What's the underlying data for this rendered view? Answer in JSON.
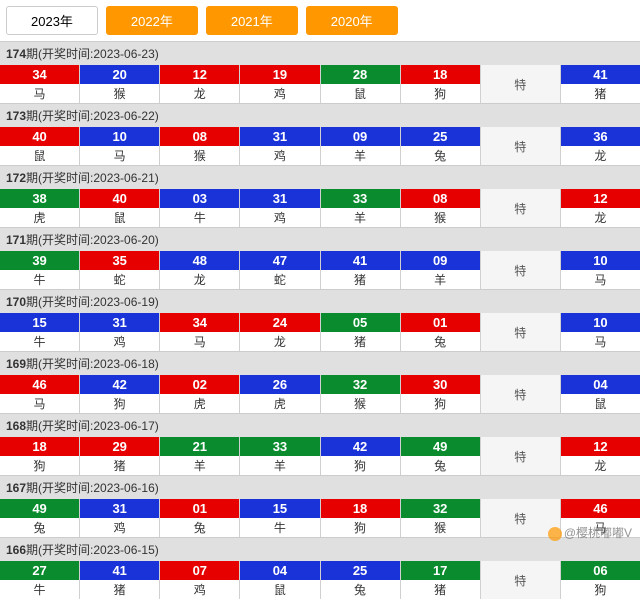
{
  "tabs": [
    {
      "label": "2023年",
      "active": true
    },
    {
      "label": "2022年",
      "active": false
    },
    {
      "label": "2021年",
      "active": false
    },
    {
      "label": "2020年",
      "active": false
    }
  ],
  "header_prefix": "期(开奖时间:",
  "header_suffix": ")",
  "special_label": "特",
  "watermark": "@樱桃嘟嘟V",
  "colors": {
    "red": "#e60000",
    "blue": "#1a33d9",
    "green": "#0a8c2e"
  },
  "rows": [
    {
      "issue": "174",
      "date": "2023-06-23",
      "cells": [
        {
          "n": "34",
          "z": "马",
          "c": "red"
        },
        {
          "n": "20",
          "z": "猴",
          "c": "blue"
        },
        {
          "n": "12",
          "z": "龙",
          "c": "red"
        },
        {
          "n": "19",
          "z": "鸡",
          "c": "red"
        },
        {
          "n": "28",
          "z": "鼠",
          "c": "green"
        },
        {
          "n": "18",
          "z": "狗",
          "c": "red"
        }
      ],
      "special": {
        "n": "41",
        "z": "猪",
        "c": "blue"
      }
    },
    {
      "issue": "173",
      "date": "2023-06-22",
      "cells": [
        {
          "n": "40",
          "z": "鼠",
          "c": "red"
        },
        {
          "n": "10",
          "z": "马",
          "c": "blue"
        },
        {
          "n": "08",
          "z": "猴",
          "c": "red"
        },
        {
          "n": "31",
          "z": "鸡",
          "c": "blue"
        },
        {
          "n": "09",
          "z": "羊",
          "c": "blue"
        },
        {
          "n": "25",
          "z": "兔",
          "c": "blue"
        }
      ],
      "special": {
        "n": "36",
        "z": "龙",
        "c": "blue"
      }
    },
    {
      "issue": "172",
      "date": "2023-06-21",
      "cells": [
        {
          "n": "38",
          "z": "虎",
          "c": "green"
        },
        {
          "n": "40",
          "z": "鼠",
          "c": "red"
        },
        {
          "n": "03",
          "z": "牛",
          "c": "blue"
        },
        {
          "n": "31",
          "z": "鸡",
          "c": "blue"
        },
        {
          "n": "33",
          "z": "羊",
          "c": "green"
        },
        {
          "n": "08",
          "z": "猴",
          "c": "red"
        }
      ],
      "special": {
        "n": "12",
        "z": "龙",
        "c": "red"
      }
    },
    {
      "issue": "171",
      "date": "2023-06-20",
      "cells": [
        {
          "n": "39",
          "z": "牛",
          "c": "green"
        },
        {
          "n": "35",
          "z": "蛇",
          "c": "red"
        },
        {
          "n": "48",
          "z": "龙",
          "c": "blue"
        },
        {
          "n": "47",
          "z": "蛇",
          "c": "blue"
        },
        {
          "n": "41",
          "z": "猪",
          "c": "blue"
        },
        {
          "n": "09",
          "z": "羊",
          "c": "blue"
        }
      ],
      "special": {
        "n": "10",
        "z": "马",
        "c": "blue"
      }
    },
    {
      "issue": "170",
      "date": "2023-06-19",
      "cells": [
        {
          "n": "15",
          "z": "牛",
          "c": "blue"
        },
        {
          "n": "31",
          "z": "鸡",
          "c": "blue"
        },
        {
          "n": "34",
          "z": "马",
          "c": "red"
        },
        {
          "n": "24",
          "z": "龙",
          "c": "red"
        },
        {
          "n": "05",
          "z": "猪",
          "c": "green"
        },
        {
          "n": "01",
          "z": "兔",
          "c": "red"
        }
      ],
      "special": {
        "n": "10",
        "z": "马",
        "c": "blue"
      }
    },
    {
      "issue": "169",
      "date": "2023-06-18",
      "cells": [
        {
          "n": "46",
          "z": "马",
          "c": "red"
        },
        {
          "n": "42",
          "z": "狗",
          "c": "blue"
        },
        {
          "n": "02",
          "z": "虎",
          "c": "red"
        },
        {
          "n": "26",
          "z": "虎",
          "c": "blue"
        },
        {
          "n": "32",
          "z": "猴",
          "c": "green"
        },
        {
          "n": "30",
          "z": "狗",
          "c": "red"
        }
      ],
      "special": {
        "n": "04",
        "z": "鼠",
        "c": "blue"
      }
    },
    {
      "issue": "168",
      "date": "2023-06-17",
      "cells": [
        {
          "n": "18",
          "z": "狗",
          "c": "red"
        },
        {
          "n": "29",
          "z": "猪",
          "c": "red"
        },
        {
          "n": "21",
          "z": "羊",
          "c": "green"
        },
        {
          "n": "33",
          "z": "羊",
          "c": "green"
        },
        {
          "n": "42",
          "z": "狗",
          "c": "blue"
        },
        {
          "n": "49",
          "z": "兔",
          "c": "green"
        }
      ],
      "special": {
        "n": "12",
        "z": "龙",
        "c": "red"
      }
    },
    {
      "issue": "167",
      "date": "2023-06-16",
      "cells": [
        {
          "n": "49",
          "z": "兔",
          "c": "green"
        },
        {
          "n": "31",
          "z": "鸡",
          "c": "blue"
        },
        {
          "n": "01",
          "z": "兔",
          "c": "red"
        },
        {
          "n": "15",
          "z": "牛",
          "c": "blue"
        },
        {
          "n": "18",
          "z": "狗",
          "c": "red"
        },
        {
          "n": "32",
          "z": "猴",
          "c": "green"
        }
      ],
      "special": {
        "n": "46",
        "z": "马",
        "c": "red"
      }
    },
    {
      "issue": "166",
      "date": "2023-06-15",
      "cells": [
        {
          "n": "27",
          "z": "牛",
          "c": "green"
        },
        {
          "n": "41",
          "z": "猪",
          "c": "blue"
        },
        {
          "n": "07",
          "z": "鸡",
          "c": "red"
        },
        {
          "n": "04",
          "z": "鼠",
          "c": "blue"
        },
        {
          "n": "25",
          "z": "兔",
          "c": "blue"
        },
        {
          "n": "17",
          "z": "猪",
          "c": "green"
        }
      ],
      "special": {
        "n": "06",
        "z": "狗",
        "c": "green"
      }
    }
  ]
}
